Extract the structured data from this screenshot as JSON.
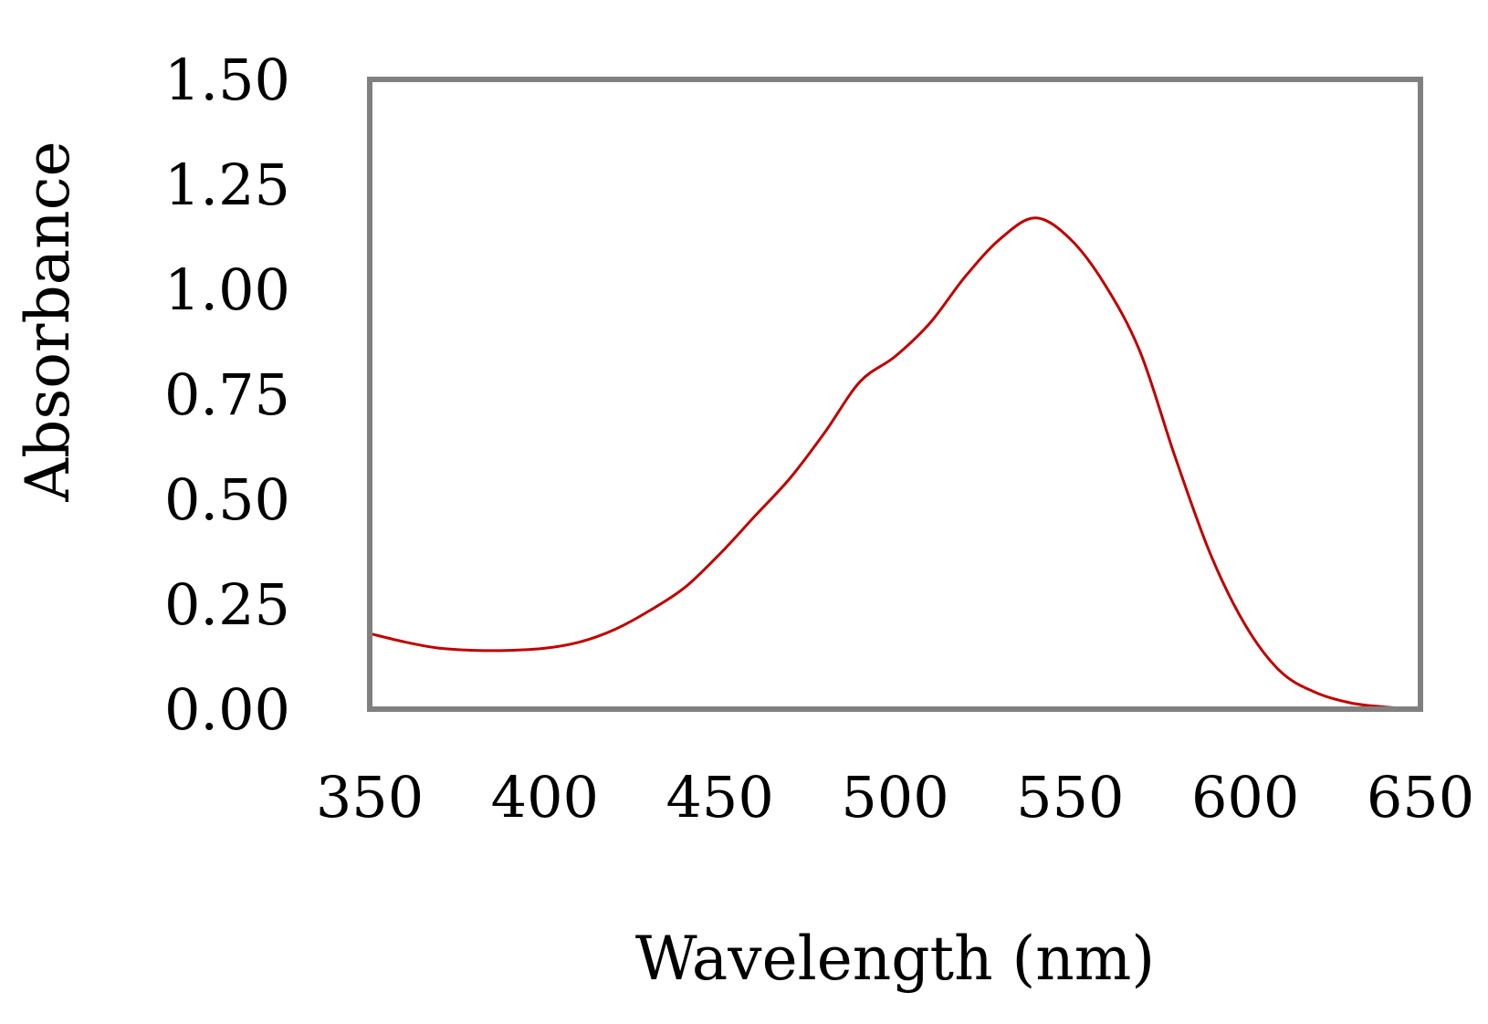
{
  "chart_data": {
    "type": "line",
    "title": "",
    "xlabel": "Wavelength (nm)",
    "ylabel": "Absorbance",
    "xlim": [
      350,
      650
    ],
    "ylim": [
      0,
      1.5
    ],
    "x_ticks": [
      "350",
      "400",
      "450",
      "500",
      "550",
      "600",
      "650"
    ],
    "y_ticks": [
      "0.00",
      "0.25",
      "0.50",
      "0.75",
      "1.00",
      "1.25",
      "1.50"
    ],
    "grid": false,
    "legend": "none",
    "colors": {
      "series": "#c00000",
      "frame": "#808080"
    },
    "series": [
      {
        "name": "Absorbance",
        "x": [
          350,
          360,
          370,
          380,
          390,
          400,
          410,
          420,
          430,
          440,
          450,
          460,
          470,
          480,
          490,
          500,
          510,
          520,
          530,
          540,
          550,
          560,
          570,
          580,
          590,
          600,
          610,
          620,
          630,
          640,
          650
        ],
        "y": [
          0.18,
          0.16,
          0.145,
          0.14,
          0.14,
          0.145,
          0.16,
          0.19,
          0.235,
          0.29,
          0.37,
          0.46,
          0.55,
          0.66,
          0.78,
          0.84,
          0.92,
          1.03,
          1.12,
          1.17,
          1.12,
          1.01,
          0.85,
          0.6,
          0.37,
          0.2,
          0.09,
          0.04,
          0.015,
          0.005,
          0.0
        ]
      }
    ]
  }
}
